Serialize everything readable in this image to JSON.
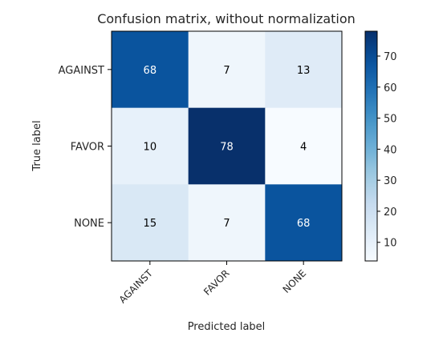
{
  "chart_data": {
    "type": "heatmap",
    "title": "Confusion matrix, without normalization",
    "xlabel": "Predicted label",
    "ylabel": "True label",
    "x_categories": [
      "AGAINST",
      "FAVOR",
      "NONE"
    ],
    "y_categories": [
      "AGAINST",
      "FAVOR",
      "NONE"
    ],
    "values": [
      [
        68,
        7,
        13
      ],
      [
        10,
        78,
        4
      ],
      [
        15,
        7,
        68
      ]
    ],
    "colormap": "Blues",
    "color_range": [
      4,
      78
    ],
    "colorbar_ticks": [
      10,
      20,
      30,
      40,
      50,
      60,
      70
    ],
    "text_color_dark": "#000000",
    "text_color_light": "#ffffff"
  }
}
